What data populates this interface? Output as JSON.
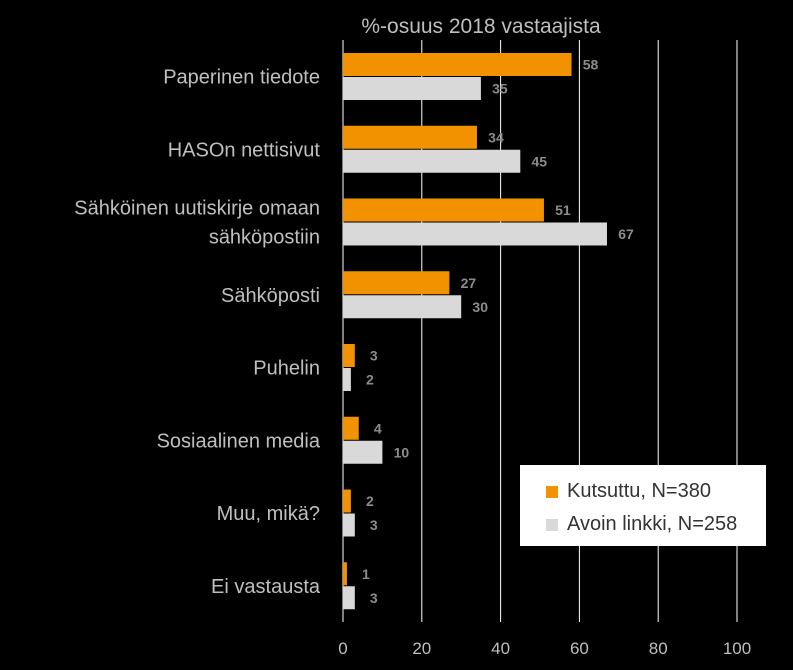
{
  "chart_data": {
    "type": "bar",
    "orientation": "horizontal",
    "title": "%-osuus 2018 vastaajista",
    "categories": [
      "Paperinen tiedote",
      "HASOn nettisivut",
      "Sähköinen uutiskirje omaan sähköpostiin",
      "Sähköposti",
      "Puhelin",
      "Sosiaalinen media",
      "Muu, mikä?",
      "Ei vastausta"
    ],
    "series": [
      {
        "name": "Kutsuttu, N=380",
        "color": "#f39200",
        "values": [
          58,
          34,
          51,
          27,
          3,
          4,
          2,
          1
        ]
      },
      {
        "name": "Avoin linkki, N=258",
        "color": "#d9d9d9",
        "values": [
          35,
          45,
          67,
          30,
          2,
          10,
          3,
          3
        ]
      }
    ],
    "xlim": [
      0,
      100
    ],
    "xticks": [
      "0",
      "20",
      "40",
      "60",
      "80",
      "100"
    ],
    "grid": true,
    "legend_position": "bottom-right",
    "xlabel": "",
    "ylabel": ""
  }
}
